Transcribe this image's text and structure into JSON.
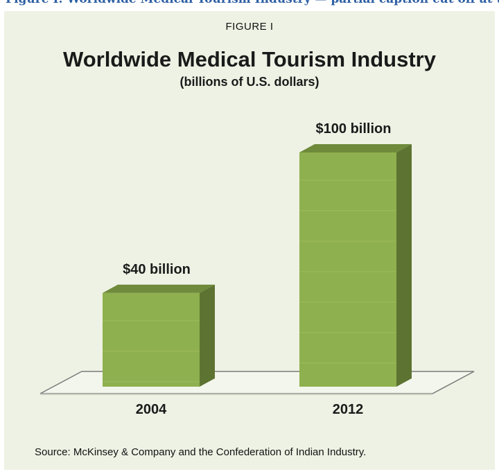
{
  "header_fragment": "Figure I: Worldwide Medical Tourism Industry — partial caption cut off at top edge",
  "figure_label": "FIGURE I",
  "source": "Source: McKinsey & Company and the Confederation of Indian Industry.",
  "colors": {
    "background": "#eef2e4",
    "bar_front": "#8fb04e",
    "bar_side": "#5d7332",
    "bar_top": "#6e8a3a",
    "caption": "#2e5fa3"
  },
  "chart_data": {
    "type": "bar",
    "title": "Worldwide Medical Tourism Industry",
    "subtitle": "(billions of U.S. dollars)",
    "categories": [
      "2004",
      "2012"
    ],
    "values": [
      40,
      100
    ],
    "data_labels": [
      "$40 billion",
      "$100 billion"
    ],
    "ylabel": "",
    "xlabel": "",
    "ylim": [
      0,
      100
    ],
    "grid": false,
    "legend": "none",
    "style": "3d"
  }
}
